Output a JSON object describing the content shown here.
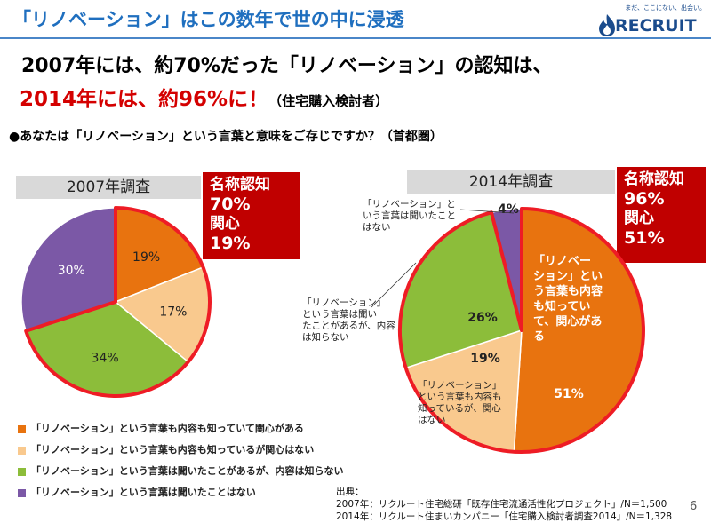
{
  "slide": {
    "title": "「リノベーション」はこの数年で世の中に浸透",
    "brand_tagline": "まだ、ここにない、出会い。",
    "brand_name": "RECRUIT",
    "headline_line1": "2007年には、約70%だった「リノベーション」の認知は、",
    "headline_line2_main": "2014年には、約96%に！",
    "headline_line2_note": "（住宅購入検討者）",
    "question": "●あなたは「リノベーション」という言葉と意味をご存じですか？（首都圏）",
    "page_number": "6"
  },
  "survey_2007": {
    "label": "2007年調査",
    "box": {
      "l1": "名称認知",
      "l2": "70%",
      "l3": "関心",
      "l4": "19%"
    }
  },
  "survey_2014": {
    "label": "2014年調査",
    "box": {
      "l1": "名称認知",
      "l2": "96%",
      "l3": "関心",
      "l4": "51%"
    },
    "annotations": {
      "never_heard": [
        "「リノベーション」と",
        "いう言葉は聞いたこと",
        "はない"
      ],
      "heard": [
        "「リノベーション」",
        "という言葉は聞い",
        "たことがあるが、内容",
        "は知らない"
      ],
      "know_no_interest": [
        "「リノベーション」",
        "という言葉も内容も",
        "知っているが、関心",
        "はない"
      ],
      "interested": [
        "「リノベー",
        "ション」とい",
        "う言葉も内容",
        "も知ってい",
        "て、関心があ",
        "る"
      ]
    }
  },
  "legend": [
    {
      "label": "「リノベーション」という言葉も内容も知っていて関心がある",
      "color": "#e8730f"
    },
    {
      "label": "「リノベーション」という言葉も内容も知っているが関心はない",
      "color": "#f9c98e"
    },
    {
      "label": "「リノベーション」という言葉は聞いたことがあるが、内容は知らない",
      "color": "#8cbd3a"
    },
    {
      "label": "「リノベーション」という言葉は聞いたことはない",
      "color": "#7b58a6"
    }
  ],
  "source": {
    "heading": "出典：",
    "line1": "2007年：リクルート住宅総研「既存住宅流通活性化プロジェクト」/N＝1,500",
    "line2": "2014年：リクルート住まいカンパニー「住宅購入検討者調査2014」/N＝1,328"
  },
  "colors": {
    "interested": "#e8730f",
    "no_interest": "#f9c98e",
    "heard_only": "#8cbd3a",
    "never_heard": "#7b58a6",
    "highlight": "#ee1c25",
    "title_blue": "#1f6fbf"
  },
  "chart_data": [
    {
      "type": "pie",
      "title": "2007年調査",
      "categories": [
        "関心がある",
        "関心はない",
        "内容は知らない",
        "聞いたことはない"
      ],
      "values": [
        19,
        17,
        34,
        30
      ],
      "labels": [
        "19%",
        "17%",
        "34%",
        "30%"
      ]
    },
    {
      "type": "pie",
      "title": "2014年調査",
      "categories": [
        "関心がある",
        "関心はない",
        "内容は知らない",
        "聞いたことはない"
      ],
      "values": [
        51,
        19,
        26,
        4
      ],
      "labels": [
        "51%",
        "19%",
        "26%",
        "4%"
      ]
    }
  ]
}
